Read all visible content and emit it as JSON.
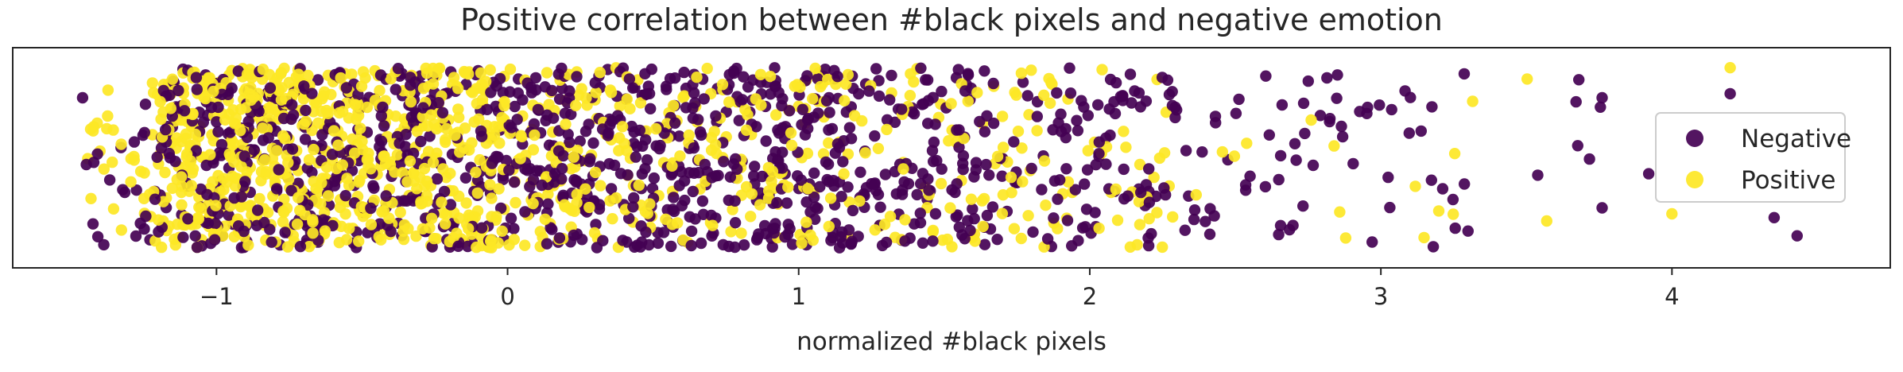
{
  "chart_data": {
    "type": "scatter",
    "title": "Positive correlation between #black pixels and negative emotion",
    "xlabel": "normalized #black pixels",
    "ylabel": "",
    "xlim": [
      -1.7,
      4.75
    ],
    "ylim": [
      -0.55,
      0.55
    ],
    "xticks": [
      -1,
      0,
      1,
      2,
      3,
      4
    ],
    "xtick_labels": [
      "−1",
      "0",
      "1",
      "2",
      "3",
      "4"
    ],
    "y_axis": "categorical strip (single jittered category, no ticks)",
    "grid": false,
    "legend": {
      "placement": "right",
      "entries": [
        "Negative",
        "Positive"
      ]
    },
    "series": [
      {
        "name": "Negative",
        "color": "#440154",
        "count": 1150,
        "x_density": [
          [
            -1.45,
            -1.2,
            0.5
          ],
          [
            -1.2,
            -0.6,
            2.2
          ],
          [
            -0.6,
            0.0,
            2.2
          ],
          [
            0.0,
            0.6,
            2.3
          ],
          [
            0.6,
            1.2,
            2.0
          ],
          [
            1.2,
            1.8,
            1.5
          ],
          [
            1.8,
            2.3,
            0.9
          ],
          [
            2.3,
            2.8,
            0.45
          ],
          [
            2.8,
            3.3,
            0.3
          ],
          [
            3.3,
            3.8,
            0.1
          ],
          [
            3.8,
            4.5,
            0.035
          ]
        ],
        "points": [
          {
            "x": -1.46,
            "y": 0.3
          },
          {
            "x": 3.68,
            "y": 0.39
          },
          {
            "x": 3.76,
            "y": 0.3
          },
          {
            "x": 3.92,
            "y": -0.08
          },
          {
            "x": 3.76,
            "y": -0.25
          },
          {
            "x": 4.2,
            "y": 0.32
          },
          {
            "x": 4.43,
            "y": -0.39
          }
        ]
      },
      {
        "name": "Positive",
        "color": "#fde725",
        "count": 1050,
        "x_density": [
          [
            -1.45,
            -1.2,
            0.6
          ],
          [
            -1.2,
            -0.6,
            3.0
          ],
          [
            -0.6,
            0.0,
            2.6
          ],
          [
            0.0,
            0.6,
            1.4
          ],
          [
            0.6,
            1.2,
            0.9
          ],
          [
            1.2,
            1.8,
            0.6
          ],
          [
            1.8,
            2.3,
            0.3
          ],
          [
            2.3,
            2.8,
            0.12
          ],
          [
            2.8,
            3.3,
            0.07
          ],
          [
            3.3,
            3.6,
            0.04
          ]
        ],
        "points": [
          {
            "x": 4.2,
            "y": 0.45
          },
          {
            "x": 4.0,
            "y": -0.28
          }
        ]
      }
    ],
    "note_points": "points lists a few distinctive outliers; the bulk of each series is generated to follow x_density"
  }
}
